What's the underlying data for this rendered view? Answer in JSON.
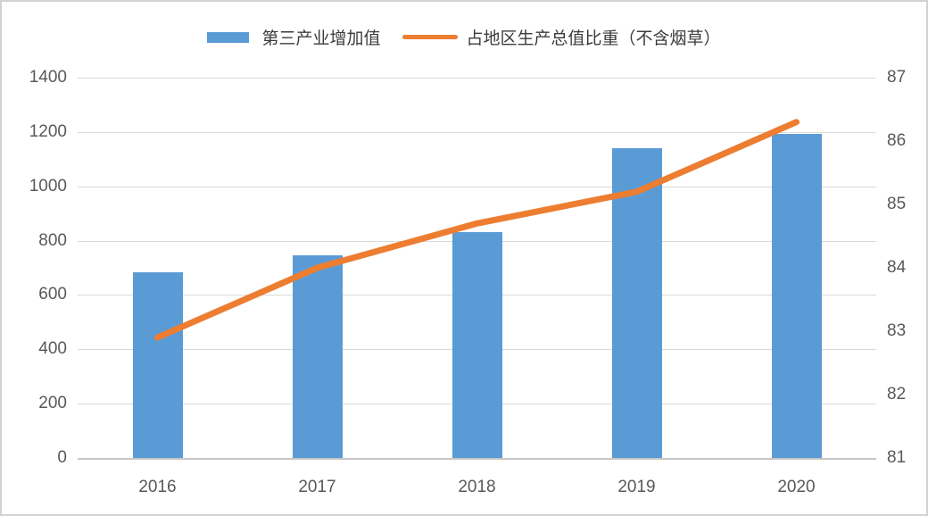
{
  "window": {
    "background_color": "#ffffff",
    "border_color": "#d2d2d2"
  },
  "legend": {
    "position": "top-center",
    "bar": {
      "label": "第三产业增加值",
      "color": "#5b9bd5",
      "swatch": "bar-swatch"
    },
    "line": {
      "label": "占地区生产总值比重（不含烟草）",
      "color": "#ed7d31",
      "swatch": "line-swatch"
    }
  },
  "chart_data": {
    "type": "bar+line combo",
    "title": "",
    "categories": [
      "2016",
      "2017",
      "2018",
      "2019",
      "2020"
    ],
    "series": [
      {
        "name": "第三产业增加值",
        "type": "bar",
        "axis": "left",
        "color": "#5b9bd5",
        "values": [
          685,
          745,
          830,
          1140,
          1192
        ]
      },
      {
        "name": "占地区生产总值比重（不含烟草）",
        "type": "line",
        "axis": "right",
        "color": "#ed7d31",
        "values": [
          82.9,
          84.0,
          84.7,
          85.2,
          86.3
        ]
      }
    ],
    "left_axis": {
      "min": 0,
      "max": 1400,
      "step": 200,
      "ticks": [
        1400,
        1200,
        1000,
        800,
        600,
        400,
        200,
        0
      ],
      "label_color": "#595959"
    },
    "right_axis": {
      "min": 81,
      "max": 87,
      "step": 1,
      "ticks": [
        87,
        86,
        85,
        84,
        83,
        82,
        81
      ],
      "label_color": "#595959"
    },
    "grid": true,
    "gridline_color": "#d9d9d9",
    "legend_position": "top"
  }
}
